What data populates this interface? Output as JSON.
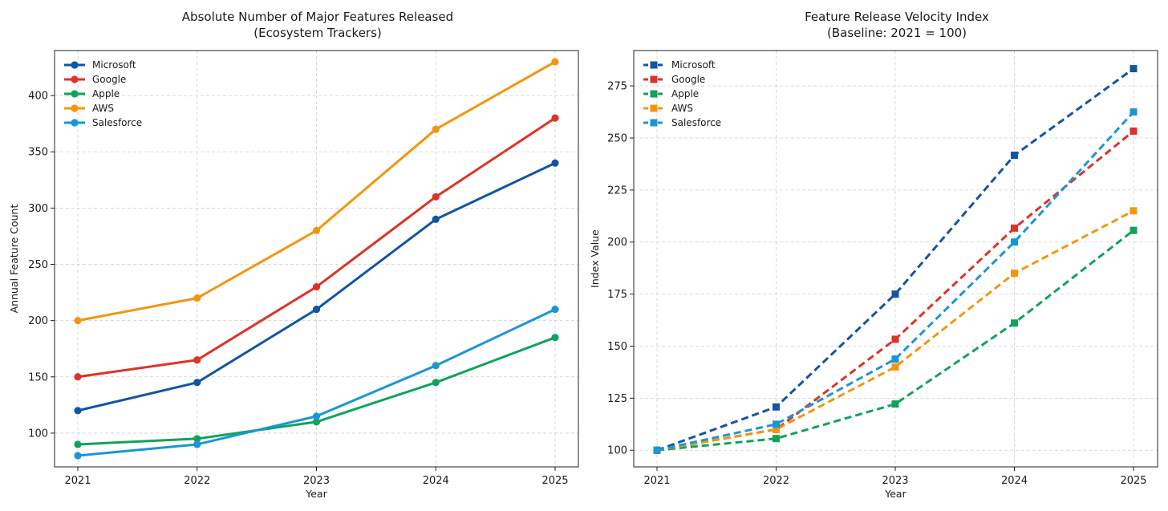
{
  "chart_data": [
    {
      "type": "line",
      "title": "Absolute Number of Major Features Released",
      "subtitle": "(Ecosystem Trackers)",
      "xlabel": "Year",
      "ylabel": "Annual Feature Count",
      "categories": [
        "2021",
        "2022",
        "2023",
        "2024",
        "2025"
      ],
      "ylim": [
        70,
        440
      ],
      "yticks": [
        100,
        150,
        200,
        250,
        300,
        350,
        400
      ],
      "grid": true,
      "legend_position": "top-left",
      "marker": "circle",
      "line_style": "solid",
      "series": [
        {
          "name": "Microsoft",
          "color": "#1155a3",
          "values": [
            120,
            145,
            210,
            290,
            340
          ]
        },
        {
          "name": "Google",
          "color": "#dd3328",
          "values": [
            150,
            165,
            230,
            310,
            380
          ]
        },
        {
          "name": "Apple",
          "color": "#10a35c",
          "values": [
            90,
            95,
            110,
            145,
            185
          ]
        },
        {
          "name": "AWS",
          "color": "#f4950f",
          "values": [
            200,
            220,
            280,
            370,
            430
          ]
        },
        {
          "name": "Salesforce",
          "color": "#1a96d4",
          "values": [
            80,
            90,
            115,
            160,
            210
          ]
        }
      ]
    },
    {
      "type": "line",
      "title": "Feature Release Velocity Index",
      "subtitle": "(Baseline: 2021 = 100)",
      "xlabel": "Year",
      "ylabel": "Index Value",
      "categories": [
        "2021",
        "2022",
        "2023",
        "2024",
        "2025"
      ],
      "ylim": [
        92,
        292
      ],
      "yticks": [
        100,
        125,
        150,
        175,
        200,
        225,
        250,
        275
      ],
      "grid": true,
      "legend_position": "top-left",
      "marker": "square",
      "line_style": "dashed",
      "series": [
        {
          "name": "Microsoft",
          "color": "#1155a3",
          "values": [
            100,
            120.8,
            175,
            241.7,
            283.3
          ]
        },
        {
          "name": "Google",
          "color": "#dd3328",
          "values": [
            100,
            110,
            153.3,
            206.7,
            253.3
          ]
        },
        {
          "name": "Apple",
          "color": "#10a35c",
          "values": [
            100,
            105.6,
            122.2,
            161.1,
            205.6
          ]
        },
        {
          "name": "AWS",
          "color": "#f4950f",
          "values": [
            100,
            110,
            140,
            185,
            215
          ]
        },
        {
          "name": "Salesforce",
          "color": "#1a96d4",
          "values": [
            100,
            112.5,
            143.8,
            200,
            262.5
          ]
        }
      ]
    }
  ]
}
